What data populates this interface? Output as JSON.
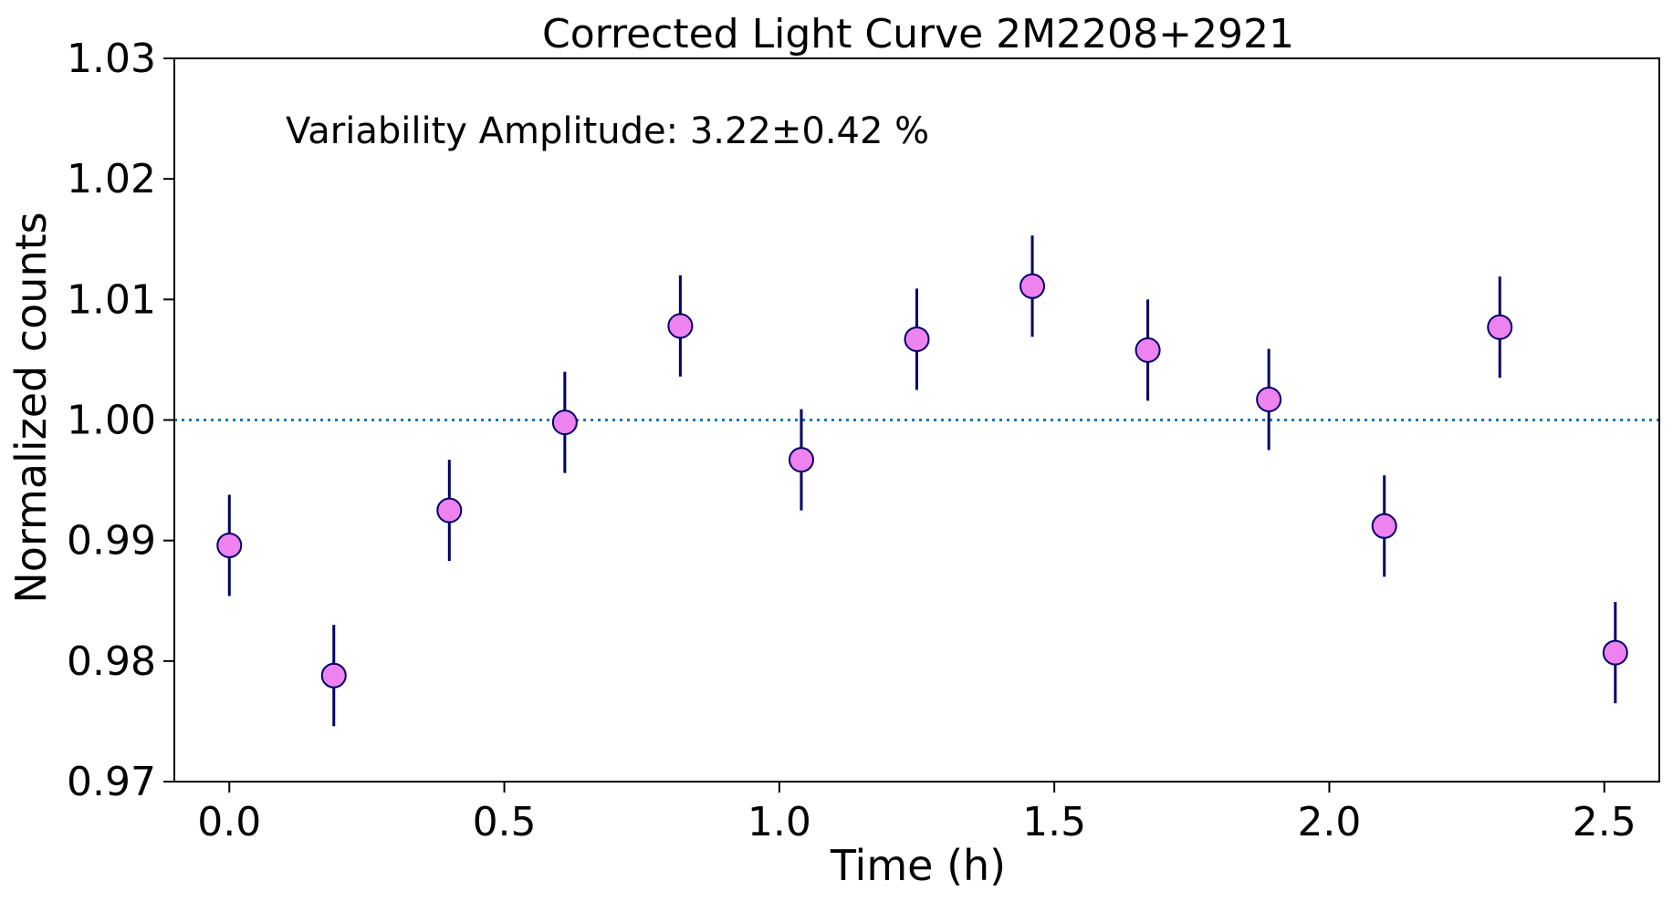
{
  "chart_data": {
    "type": "scatter",
    "title": "Corrected Light Curve 2M2208+2921",
    "xlabel": "Time (h)",
    "ylabel": "Normalized counts",
    "xlim": [
      -0.1,
      2.6
    ],
    "ylim": [
      0.97,
      1.03
    ],
    "xticks": [
      0.0,
      0.5,
      1.0,
      1.5,
      2.0,
      2.5
    ],
    "xtick_labels": [
      "0.0",
      "0.5",
      "1.0",
      "1.5",
      "2.0",
      "2.5"
    ],
    "yticks": [
      0.97,
      0.98,
      0.99,
      1.0,
      1.01,
      1.02,
      1.03
    ],
    "ytick_labels": [
      "0.97",
      "0.98",
      "0.99",
      "1.00",
      "1.01",
      "1.02",
      "1.03"
    ],
    "annotation": "Variability Amplitude: 3.22±0.42 %",
    "reference_line": {
      "y": 1.0,
      "style": "dotted",
      "color": "#1f77b4"
    },
    "marker_color": "#ee82ee",
    "marker_edge_color": "#000066",
    "errorbar_color": "#000066",
    "series": [
      {
        "name": "2M2208+2921",
        "x": [
          0.0,
          0.19,
          0.4,
          0.61,
          0.82,
          1.04,
          1.25,
          1.46,
          1.67,
          1.89,
          2.1,
          2.31,
          2.52
        ],
        "y": [
          0.9896,
          0.9788,
          0.9925,
          0.9998,
          1.0078,
          0.9967,
          1.0067,
          1.0111,
          1.0058,
          1.0017,
          0.9912,
          1.0077,
          0.9807
        ],
        "yerr": [
          0.0042,
          0.0042,
          0.0042,
          0.0042,
          0.0042,
          0.0042,
          0.0042,
          0.0042,
          0.0042,
          0.0042,
          0.0042,
          0.0042,
          0.0042
        ]
      }
    ]
  }
}
